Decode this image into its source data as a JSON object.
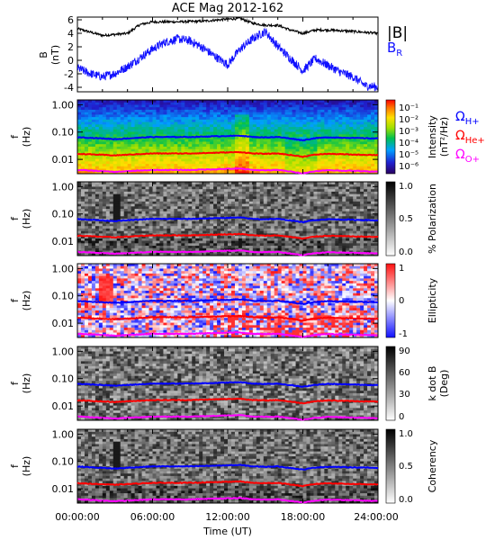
{
  "title": "ACE Mag 2012-162",
  "x_axis": {
    "label": "Time (UT)",
    "ticks": [
      "00:00:00",
      "06:00:00",
      "12:00:00",
      "18:00:00",
      "24:00:00"
    ],
    "range_hours": [
      0,
      24
    ]
  },
  "legend": {
    "btot": "|B|",
    "br_main": "B",
    "br_sub": "R",
    "omega": "Ω",
    "h_sub": "H+",
    "he_sub": "He+",
    "o_sub": "O+"
  },
  "colors": {
    "btot": "#000000",
    "br": "#1010ff",
    "h": "#0000ff",
    "he": "#ff0000",
    "o": "#ff00ff"
  },
  "freq_ticks": [
    "1.00",
    "0.10",
    "0.01"
  ],
  "panels": {
    "b": {
      "ylabel": "B",
      "yunit": "(nT)",
      "ticks": [
        "6",
        "4",
        "2",
        "0",
        "-2",
        "-4"
      ],
      "ylim": [
        -4.5,
        6.5
      ]
    },
    "intensity": {
      "ylabel": "f",
      "yunit": "(Hz)",
      "cbar_label": "Intensity",
      "cbar_unit": "(nT²/Hz)",
      "cbar_ticks": [
        "10⁻¹",
        "10⁻²",
        "10⁻³",
        "10⁻⁴",
        "10⁻⁵",
        "10⁻⁶"
      ],
      "scale": "log",
      "cmap": "rainbow"
    },
    "polarization": {
      "ylabel": "f",
      "yunit": "(Hz)",
      "cbar_label": "% Polarization",
      "cbar_ticks": [
        "1.0",
        "0.5",
        "0.0"
      ],
      "cmap": "gray"
    },
    "ellipticity": {
      "ylabel": "f",
      "yunit": "(Hz)",
      "cbar_label": "Ellipticity",
      "cbar_ticks": [
        "1",
        "0",
        "-1"
      ],
      "cmap": "bwr"
    },
    "kdotb": {
      "ylabel": "f",
      "yunit": "(Hz)",
      "cbar_label": "k dot B",
      "cbar_unit": "(Deg)",
      "cbar_ticks": [
        "90",
        "60",
        "30",
        "0"
      ],
      "cmap": "gray"
    },
    "coherency": {
      "ylabel": "f",
      "yunit": "(Hz)",
      "cbar_label": "Coherency",
      "cbar_ticks": [
        "1.0",
        "0.5",
        "0.0"
      ],
      "cmap": "gray"
    }
  },
  "chart_data": [
    {
      "type": "line",
      "title": "ACE Mag 2012-162",
      "ylabel": "B (nT)",
      "ylim": [
        -4.5,
        6.5
      ],
      "x_unit": "hours UT",
      "series": [
        {
          "name": "|B|",
          "x": [
            0,
            2,
            4,
            5,
            6,
            8,
            10,
            12,
            13,
            14,
            15,
            16,
            17,
            18,
            19,
            20,
            22,
            24
          ],
          "values": [
            4.8,
            3.8,
            4.1,
            5.4,
            5.8,
            5.8,
            5.9,
            6.2,
            6.3,
            5.6,
            5.3,
            5.3,
            4.6,
            4.1,
            4.6,
            4.6,
            4.4,
            4.1
          ]
        },
        {
          "name": "BR",
          "x": [
            0,
            1,
            2,
            3,
            4,
            5,
            6,
            7,
            8,
            9,
            10,
            11,
            12,
            13,
            14,
            15,
            16,
            17,
            18,
            19,
            20,
            21,
            22,
            23,
            24
          ],
          "values": [
            -1.0,
            -1.8,
            -2.3,
            -1.8,
            -0.8,
            0.5,
            1.8,
            2.8,
            3.3,
            3.0,
            2.0,
            0.7,
            -0.5,
            1.8,
            3.3,
            4.4,
            2.2,
            0.4,
            -1.4,
            0.4,
            -0.6,
            -1.6,
            -2.3,
            -3.6,
            -3.8
          ]
        }
      ]
    },
    {
      "type": "line",
      "ylabel": "f (Hz)",
      "yscale": "log",
      "ylim": [
        0.003,
        1.5
      ],
      "x_unit": "hours UT",
      "series": [
        {
          "name": "ΩH+",
          "x": [
            0,
            3,
            6,
            9,
            12,
            13,
            14,
            15,
            16,
            17,
            18,
            19,
            20,
            22,
            24
          ],
          "values": [
            0.065,
            0.055,
            0.066,
            0.066,
            0.072,
            0.074,
            0.066,
            0.064,
            0.066,
            0.058,
            0.05,
            0.06,
            0.064,
            0.061,
            0.058
          ]
        },
        {
          "name": "ΩHe+",
          "x": [
            0,
            3,
            6,
            9,
            12,
            13,
            14,
            15,
            16,
            17,
            18,
            19,
            20,
            22,
            24
          ],
          "values": [
            0.016,
            0.014,
            0.0165,
            0.0165,
            0.018,
            0.0185,
            0.0165,
            0.016,
            0.0165,
            0.0145,
            0.0125,
            0.015,
            0.016,
            0.015,
            0.0145
          ]
        },
        {
          "name": "ΩO+",
          "x": [
            0,
            3,
            6,
            9,
            12,
            13,
            14,
            15,
            16,
            17,
            18,
            19,
            20,
            22,
            24
          ],
          "values": [
            0.0041,
            0.0035,
            0.0041,
            0.0041,
            0.0045,
            0.0046,
            0.0041,
            0.004,
            0.0041,
            0.0036,
            0.0031,
            0.0037,
            0.004,
            0.0038,
            0.0036
          ]
        }
      ]
    }
  ]
}
